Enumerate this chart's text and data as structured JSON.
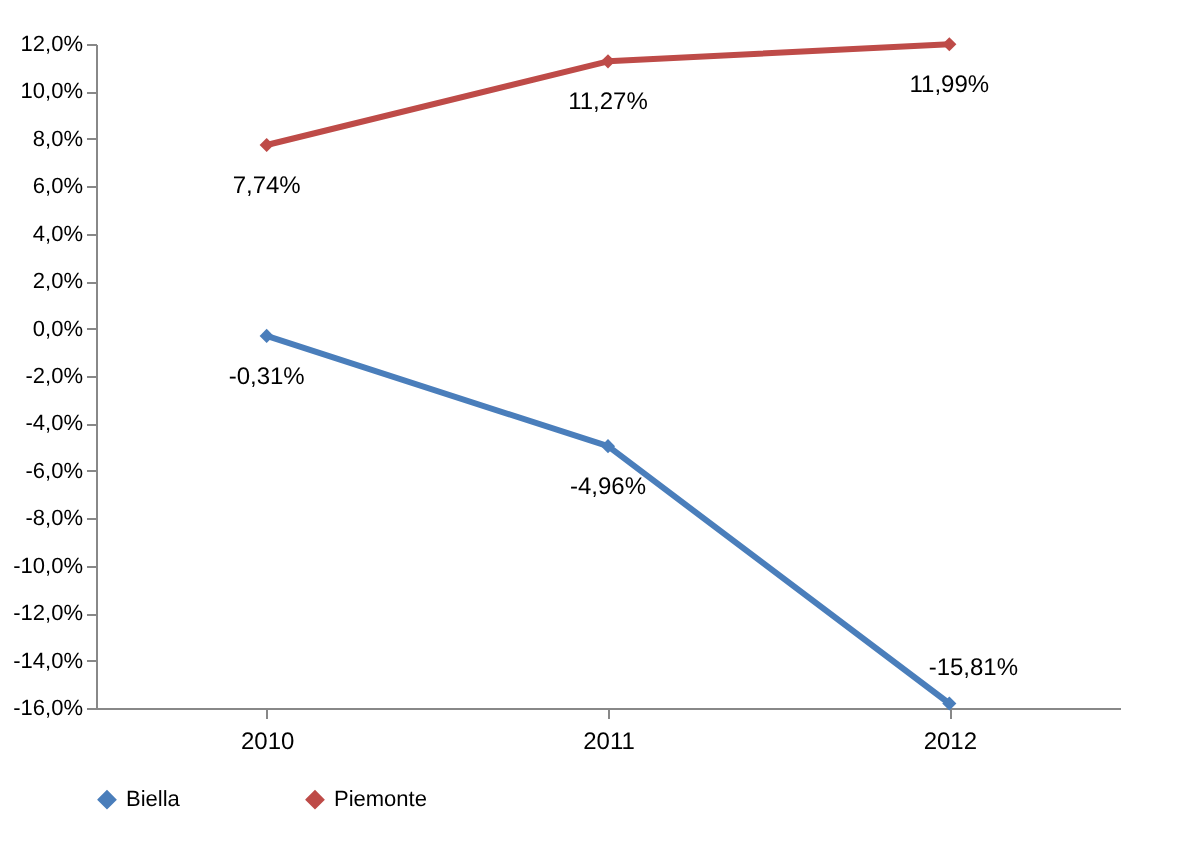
{
  "chart_data": {
    "type": "line",
    "categories": [
      "2010",
      "2011",
      "2012"
    ],
    "series": [
      {
        "name": "Biella",
        "color": "#4a7ebb",
        "values": [
          -0.31,
          -4.96,
          -15.81
        ],
        "value_labels": [
          "-0,31%",
          "-4,96%",
          "-15,81%"
        ]
      },
      {
        "name": "Piemonte",
        "color": "#be4b48",
        "values": [
          7.74,
          11.27,
          11.99
        ],
        "value_labels": [
          "7,74%",
          "11,27%",
          "11,99%"
        ]
      }
    ],
    "ylim": [
      -16,
      12
    ],
    "yticks": [
      {
        "value": -16,
        "label": "-16,0%"
      },
      {
        "value": -14,
        "label": "-14,0%"
      },
      {
        "value": -12,
        "label": "-12,0%"
      },
      {
        "value": -10,
        "label": "-10,0%"
      },
      {
        "value": -8,
        "label": "-8,0%"
      },
      {
        "value": -6,
        "label": "-6,0%"
      },
      {
        "value": -4,
        "label": "-4,0%"
      },
      {
        "value": -2,
        "label": "-2,0%"
      },
      {
        "value": 0,
        "label": "0,0%"
      },
      {
        "value": 2,
        "label": "2,0%"
      },
      {
        "value": 4,
        "label": "4,0%"
      },
      {
        "value": 6,
        "label": "6,0%"
      },
      {
        "value": 8,
        "label": "8,0%"
      },
      {
        "value": 10,
        "label": "10,0%"
      },
      {
        "value": 12,
        "label": "12,0%"
      }
    ],
    "legend": "bottom",
    "marker": "diamond",
    "line_style": "solid",
    "grid": false
  }
}
